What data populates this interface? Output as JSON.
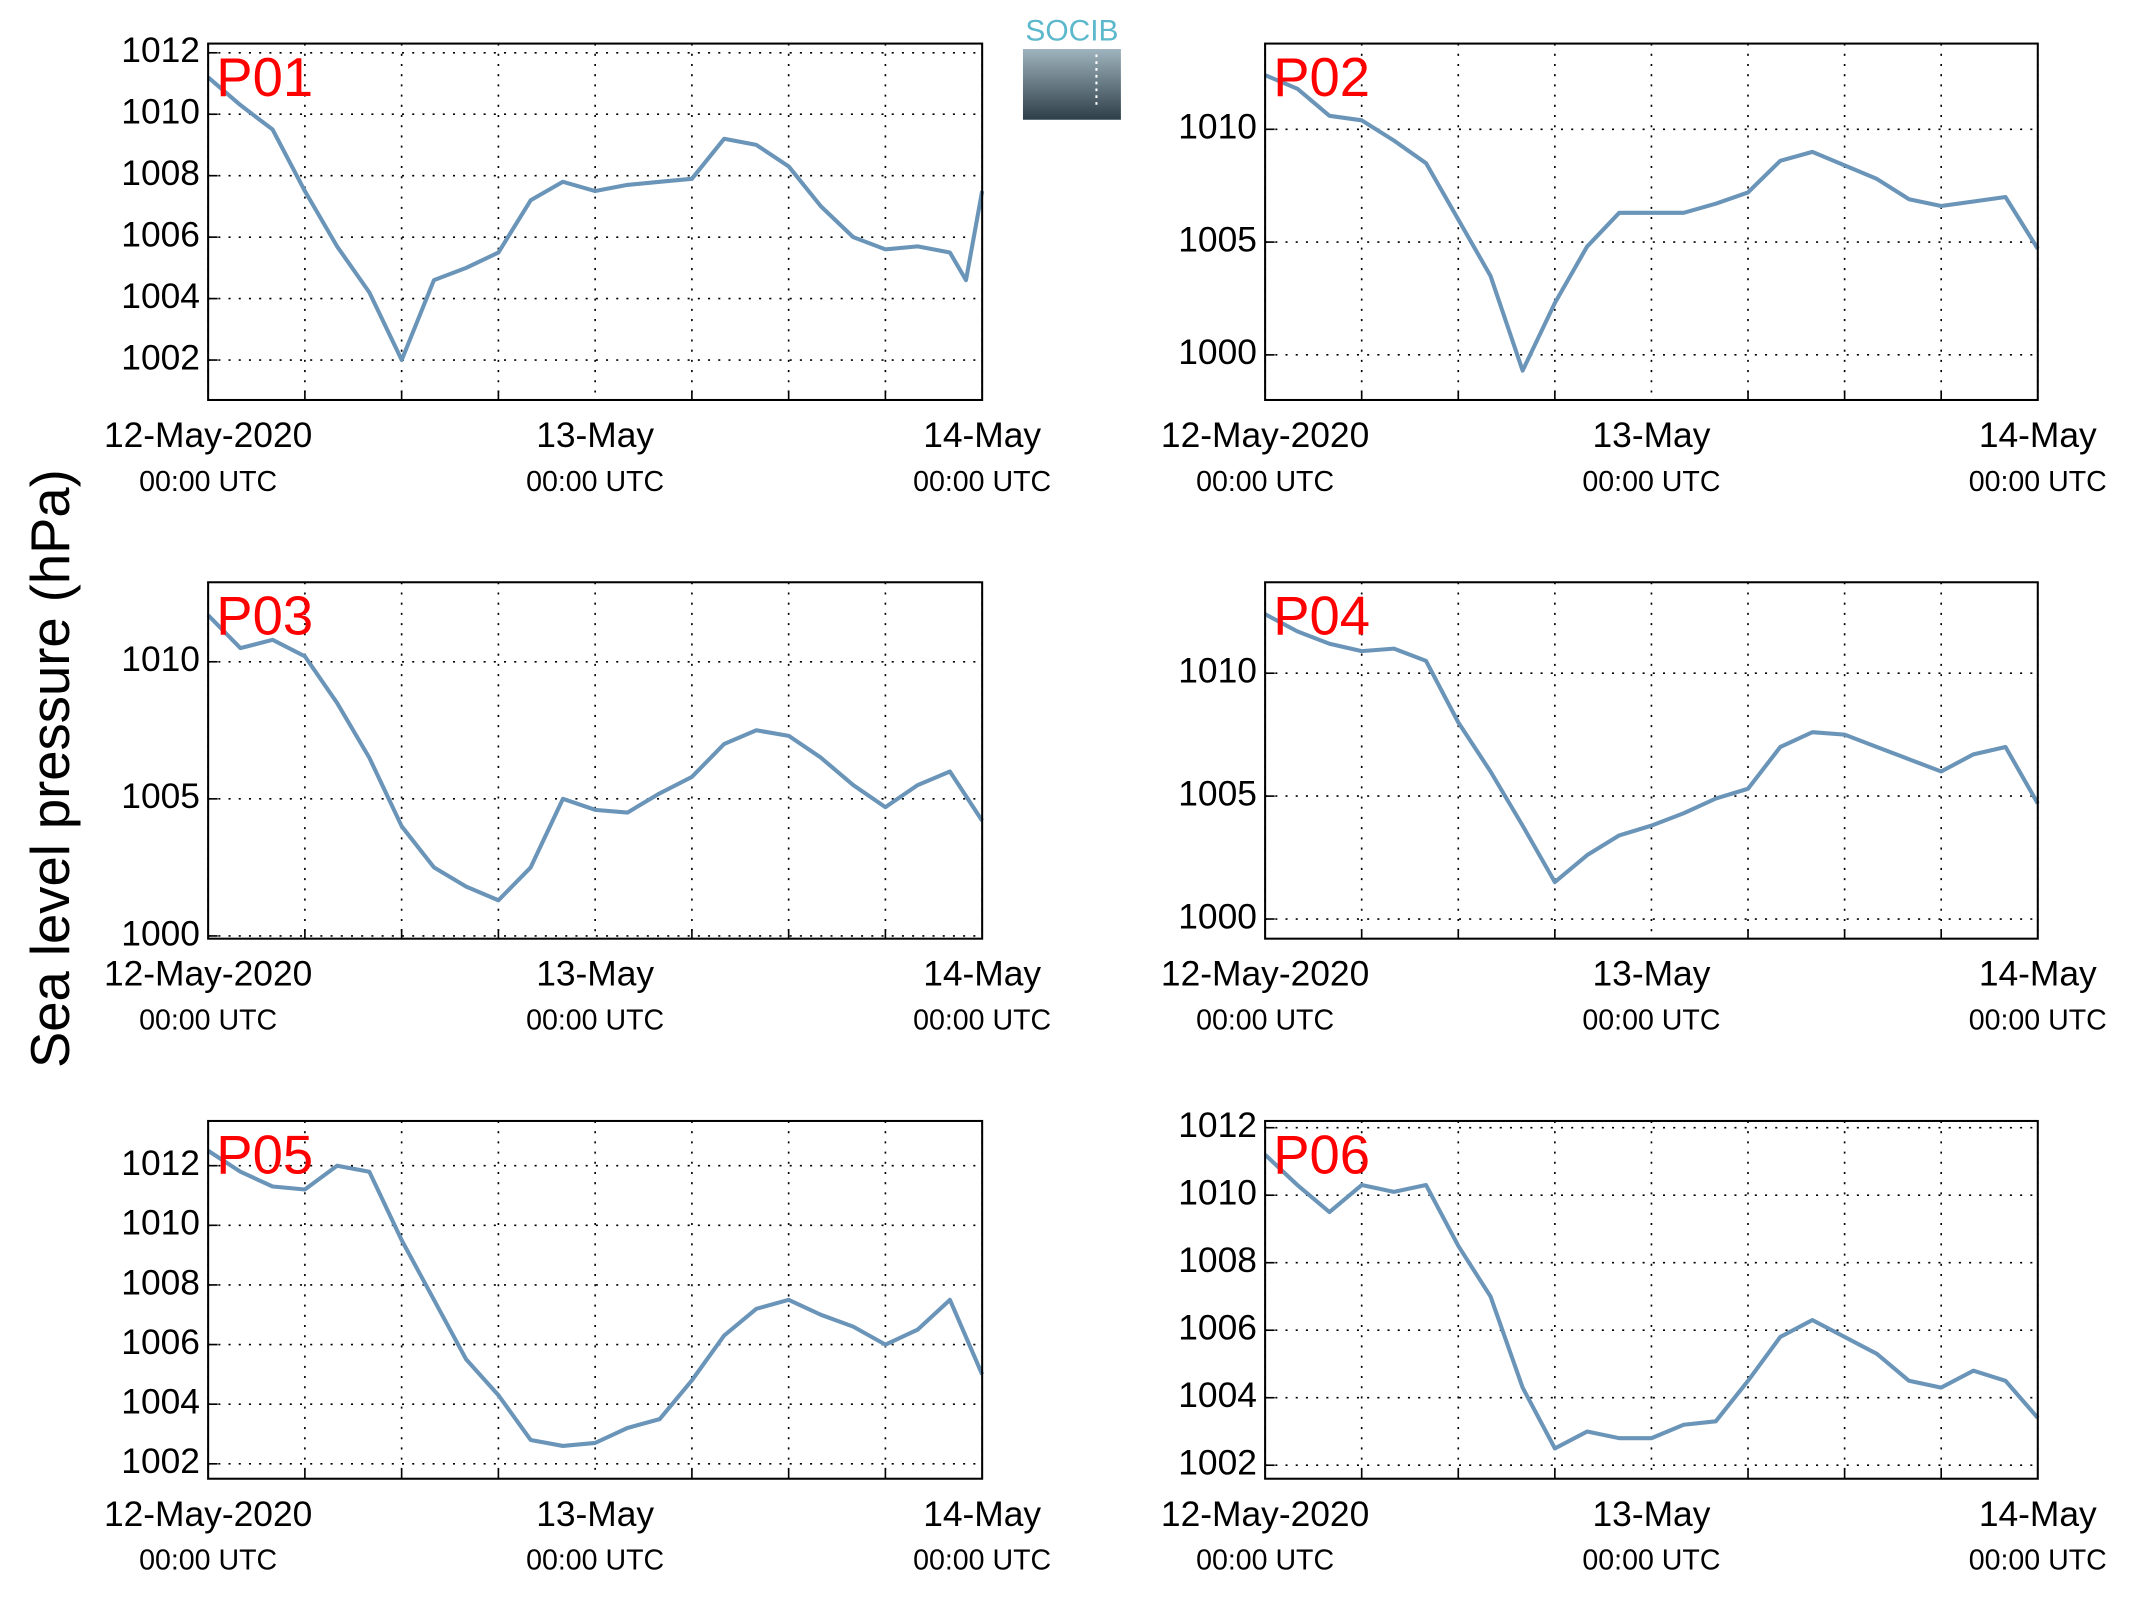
{
  "ylabel": "Sea level pressure (hPa)",
  "logo": "SOCIB",
  "chart_data": [
    {
      "type": "line",
      "annotation": "P01",
      "color": "#6a95b8",
      "x": [
        "2020-05-12T00:00",
        "2020-05-12T02:00",
        "2020-05-12T04:00",
        "2020-05-12T06:00",
        "2020-05-12T08:00",
        "2020-05-12T10:00",
        "2020-05-12T12:00",
        "2020-05-12T14:00",
        "2020-05-12T16:00",
        "2020-05-12T18:00",
        "2020-05-12T20:00",
        "2020-05-12T22:00",
        "2020-05-13T00:00",
        "2020-05-13T02:00",
        "2020-05-13T04:00",
        "2020-05-13T06:00",
        "2020-05-13T08:00",
        "2020-05-13T10:00",
        "2020-05-13T12:00",
        "2020-05-13T14:00",
        "2020-05-13T16:00",
        "2020-05-13T18:00",
        "2020-05-13T20:00",
        "2020-05-13T22:00",
        "2020-05-13T23:00",
        "2020-05-14T00:00"
      ],
      "values": [
        1011.2,
        1010.3,
        1009.5,
        1007.5,
        1005.7,
        1004.2,
        1002.0,
        1004.6,
        1005.0,
        1005.5,
        1007.2,
        1007.8,
        1007.5,
        1007.7,
        1007.8,
        1007.9,
        1009.2,
        1009.0,
        1008.3,
        1007.0,
        1006.0,
        1005.6,
        1005.7,
        1005.5,
        1004.6,
        1007.5
      ],
      "xlim": [
        "2020-05-12T00:00",
        "2020-05-14T00:00"
      ],
      "xticks": [
        {
          "value": "2020-05-12T00:00",
          "label": "12-May-2020\n00:00 UTC"
        },
        {
          "value": "2020-05-13T00:00",
          "label": "13-May\n00:00 UTC"
        },
        {
          "value": "2020-05-14T00:00",
          "label": "14-May\n00:00 UTC"
        }
      ],
      "xminor": [
        "2020-05-12T06:00",
        "2020-05-12T12:00",
        "2020-05-12T18:00",
        "2020-05-13T06:00",
        "2020-05-13T12:00",
        "2020-05-13T18:00"
      ],
      "ylim": [
        1000.7,
        1012.3
      ],
      "yticks": [
        1002,
        1004,
        1006,
        1008,
        1010,
        1012
      ],
      "grid": true
    },
    {
      "type": "line",
      "annotation": "P02",
      "color": "#6a95b8",
      "x": [
        "2020-05-12T00:00",
        "2020-05-12T02:00",
        "2020-05-12T04:00",
        "2020-05-12T06:00",
        "2020-05-12T08:00",
        "2020-05-12T10:00",
        "2020-05-12T12:00",
        "2020-05-12T14:00",
        "2020-05-12T16:00",
        "2020-05-12T18:00",
        "2020-05-12T20:00",
        "2020-05-12T22:00",
        "2020-05-13T00:00",
        "2020-05-13T02:00",
        "2020-05-13T04:00",
        "2020-05-13T06:00",
        "2020-05-13T08:00",
        "2020-05-13T10:00",
        "2020-05-13T12:00",
        "2020-05-13T14:00",
        "2020-05-13T16:00",
        "2020-05-13T18:00",
        "2020-05-13T20:00",
        "2020-05-13T22:00",
        "2020-05-14T00:00"
      ],
      "values": [
        1012.4,
        1011.8,
        1010.6,
        1010.4,
        1009.5,
        1008.5,
        1006.0,
        1003.5,
        999.3,
        1002.3,
        1004.8,
        1006.3,
        1006.3,
        1006.3,
        1006.7,
        1007.2,
        1008.6,
        1009.0,
        1008.4,
        1007.8,
        1006.9,
        1006.6,
        1006.8,
        1007.0,
        1004.7
      ],
      "xlim": [
        "2020-05-12T00:00",
        "2020-05-14T00:00"
      ],
      "xticks": [
        {
          "value": "2020-05-12T00:00",
          "label": "12-May-2020\n00:00 UTC"
        },
        {
          "value": "2020-05-13T00:00",
          "label": "13-May\n00:00 UTC"
        },
        {
          "value": "2020-05-14T00:00",
          "label": "14-May\n00:00 UTC"
        }
      ],
      "xminor": [
        "2020-05-12T06:00",
        "2020-05-12T12:00",
        "2020-05-12T18:00",
        "2020-05-13T06:00",
        "2020-05-13T12:00",
        "2020-05-13T18:00"
      ],
      "ylim": [
        998.0,
        1013.8
      ],
      "yticks": [
        1000,
        1005,
        1010
      ],
      "grid": true
    },
    {
      "type": "line",
      "annotation": "P03",
      "color": "#6a95b8",
      "x": [
        "2020-05-12T00:00",
        "2020-05-12T02:00",
        "2020-05-12T04:00",
        "2020-05-12T06:00",
        "2020-05-12T08:00",
        "2020-05-12T10:00",
        "2020-05-12T12:00",
        "2020-05-12T14:00",
        "2020-05-12T16:00",
        "2020-05-12T18:00",
        "2020-05-12T20:00",
        "2020-05-12T22:00",
        "2020-05-13T00:00",
        "2020-05-13T02:00",
        "2020-05-13T04:00",
        "2020-05-13T06:00",
        "2020-05-13T08:00",
        "2020-05-13T10:00",
        "2020-05-13T12:00",
        "2020-05-13T14:00",
        "2020-05-13T16:00",
        "2020-05-13T18:00",
        "2020-05-13T20:00",
        "2020-05-13T22:00",
        "2020-05-14T00:00"
      ],
      "values": [
        1011.7,
        1010.5,
        1010.8,
        1010.2,
        1008.5,
        1006.5,
        1004.0,
        1002.5,
        1001.8,
        1001.3,
        1002.5,
        1005.0,
        1004.6,
        1004.5,
        1005.2,
        1005.8,
        1007.0,
        1007.5,
        1007.3,
        1006.5,
        1005.5,
        1004.7,
        1005.5,
        1006.0,
        1004.2
      ],
      "xlim": [
        "2020-05-12T00:00",
        "2020-05-14T00:00"
      ],
      "xticks": [
        {
          "value": "2020-05-12T00:00",
          "label": "12-May-2020\n00:00 UTC"
        },
        {
          "value": "2020-05-13T00:00",
          "label": "13-May\n00:00 UTC"
        },
        {
          "value": "2020-05-14T00:00",
          "label": "14-May\n00:00 UTC"
        }
      ],
      "xminor": [
        "2020-05-12T06:00",
        "2020-05-12T12:00",
        "2020-05-12T18:00",
        "2020-05-13T06:00",
        "2020-05-13T12:00",
        "2020-05-13T18:00"
      ],
      "ylim": [
        999.9,
        1012.9
      ],
      "yticks": [
        1000,
        1005,
        1010
      ],
      "grid": true
    },
    {
      "type": "line",
      "annotation": "P04",
      "color": "#6a95b8",
      "x": [
        "2020-05-12T00:00",
        "2020-05-12T02:00",
        "2020-05-12T04:00",
        "2020-05-12T06:00",
        "2020-05-12T08:00",
        "2020-05-12T10:00",
        "2020-05-12T12:00",
        "2020-05-12T14:00",
        "2020-05-12T16:00",
        "2020-05-12T18:00",
        "2020-05-12T20:00",
        "2020-05-12T22:00",
        "2020-05-13T00:00",
        "2020-05-13T02:00",
        "2020-05-13T04:00",
        "2020-05-13T06:00",
        "2020-05-13T08:00",
        "2020-05-13T10:00",
        "2020-05-13T12:00",
        "2020-05-13T14:00",
        "2020-05-13T16:00",
        "2020-05-13T18:00",
        "2020-05-13T20:00",
        "2020-05-13T22:00",
        "2020-05-14T00:00"
      ],
      "values": [
        1012.4,
        1011.7,
        1011.2,
        1010.9,
        1011.0,
        1010.5,
        1008.0,
        1006.0,
        1003.8,
        1001.5,
        1002.6,
        1003.4,
        1003.8,
        1004.3,
        1004.9,
        1005.3,
        1007.0,
        1007.6,
        1007.5,
        1007.0,
        1006.5,
        1006.0,
        1006.7,
        1007.0,
        1004.7
      ],
      "xlim": [
        "2020-05-12T00:00",
        "2020-05-14T00:00"
      ],
      "xticks": [
        {
          "value": "2020-05-12T00:00",
          "label": "12-May-2020\n00:00 UTC"
        },
        {
          "value": "2020-05-13T00:00",
          "label": "13-May\n00:00 UTC"
        },
        {
          "value": "2020-05-14T00:00",
          "label": "14-May\n00:00 UTC"
        }
      ],
      "xminor": [
        "2020-05-12T06:00",
        "2020-05-12T12:00",
        "2020-05-12T18:00",
        "2020-05-13T06:00",
        "2020-05-13T12:00",
        "2020-05-13T18:00"
      ],
      "ylim": [
        999.2,
        1013.7
      ],
      "yticks": [
        1000,
        1005,
        1010
      ],
      "grid": true
    },
    {
      "type": "line",
      "annotation": "P05",
      "color": "#6a95b8",
      "x": [
        "2020-05-12T00:00",
        "2020-05-12T02:00",
        "2020-05-12T04:00",
        "2020-05-12T06:00",
        "2020-05-12T08:00",
        "2020-05-12T10:00",
        "2020-05-12T12:00",
        "2020-05-12T14:00",
        "2020-05-12T16:00",
        "2020-05-12T18:00",
        "2020-05-12T20:00",
        "2020-05-12T22:00",
        "2020-05-13T00:00",
        "2020-05-13T02:00",
        "2020-05-13T04:00",
        "2020-05-13T06:00",
        "2020-05-13T08:00",
        "2020-05-13T10:00",
        "2020-05-13T12:00",
        "2020-05-13T14:00",
        "2020-05-13T16:00",
        "2020-05-13T18:00",
        "2020-05-13T20:00",
        "2020-05-13T22:00",
        "2020-05-14T00:00"
      ],
      "values": [
        1012.5,
        1011.8,
        1011.3,
        1011.2,
        1012.0,
        1011.8,
        1009.5,
        1007.5,
        1005.5,
        1004.3,
        1002.8,
        1002.6,
        1002.7,
        1003.2,
        1003.5,
        1004.8,
        1006.3,
        1007.2,
        1007.5,
        1007.0,
        1006.6,
        1006.0,
        1006.5,
        1007.5,
        1005.0
      ],
      "xlim": [
        "2020-05-12T00:00",
        "2020-05-14T00:00"
      ],
      "xticks": [
        {
          "value": "2020-05-12T00:00",
          "label": "12-May-2020\n00:00 UTC"
        },
        {
          "value": "2020-05-13T00:00",
          "label": "13-May\n00:00 UTC"
        },
        {
          "value": "2020-05-14T00:00",
          "label": "14-May\n00:00 UTC"
        }
      ],
      "xminor": [
        "2020-05-12T06:00",
        "2020-05-12T12:00",
        "2020-05-12T18:00",
        "2020-05-13T06:00",
        "2020-05-13T12:00",
        "2020-05-13T18:00"
      ],
      "ylim": [
        1001.5,
        1013.5
      ],
      "yticks": [
        1002,
        1004,
        1006,
        1008,
        1010,
        1012
      ],
      "grid": true
    },
    {
      "type": "line",
      "annotation": "P06",
      "color": "#6a95b8",
      "x": [
        "2020-05-12T00:00",
        "2020-05-12T02:00",
        "2020-05-12T04:00",
        "2020-05-12T06:00",
        "2020-05-12T08:00",
        "2020-05-12T10:00",
        "2020-05-12T12:00",
        "2020-05-12T14:00",
        "2020-05-12T16:00",
        "2020-05-12T18:00",
        "2020-05-12T20:00",
        "2020-05-12T22:00",
        "2020-05-13T00:00",
        "2020-05-13T02:00",
        "2020-05-13T04:00",
        "2020-05-13T06:00",
        "2020-05-13T08:00",
        "2020-05-13T10:00",
        "2020-05-13T12:00",
        "2020-05-13T14:00",
        "2020-05-13T16:00",
        "2020-05-13T18:00",
        "2020-05-13T20:00",
        "2020-05-13T22:00",
        "2020-05-14T00:00"
      ],
      "values": [
        1011.2,
        1010.3,
        1009.5,
        1010.3,
        1010.1,
        1010.3,
        1008.5,
        1007.0,
        1004.3,
        1002.5,
        1003.0,
        1002.8,
        1002.8,
        1003.2,
        1003.3,
        1004.5,
        1005.8,
        1006.3,
        1005.8,
        1005.3,
        1004.5,
        1004.3,
        1004.8,
        1004.5,
        1003.4
      ],
      "xlim": [
        "2020-05-12T00:00",
        "2020-05-14T00:00"
      ],
      "xticks": [
        {
          "value": "2020-05-12T00:00",
          "label": "12-May-2020\n00:00 UTC"
        },
        {
          "value": "2020-05-13T00:00",
          "label": "13-May\n00:00 UTC"
        },
        {
          "value": "2020-05-14T00:00",
          "label": "14-May\n00:00 UTC"
        }
      ],
      "xminor": [
        "2020-05-12T06:00",
        "2020-05-12T12:00",
        "2020-05-12T18:00",
        "2020-05-13T06:00",
        "2020-05-13T12:00",
        "2020-05-13T18:00"
      ],
      "ylim": [
        1001.6,
        1012.2
      ],
      "yticks": [
        1002,
        1004,
        1006,
        1008,
        1010,
        1012
      ],
      "grid": true
    }
  ]
}
